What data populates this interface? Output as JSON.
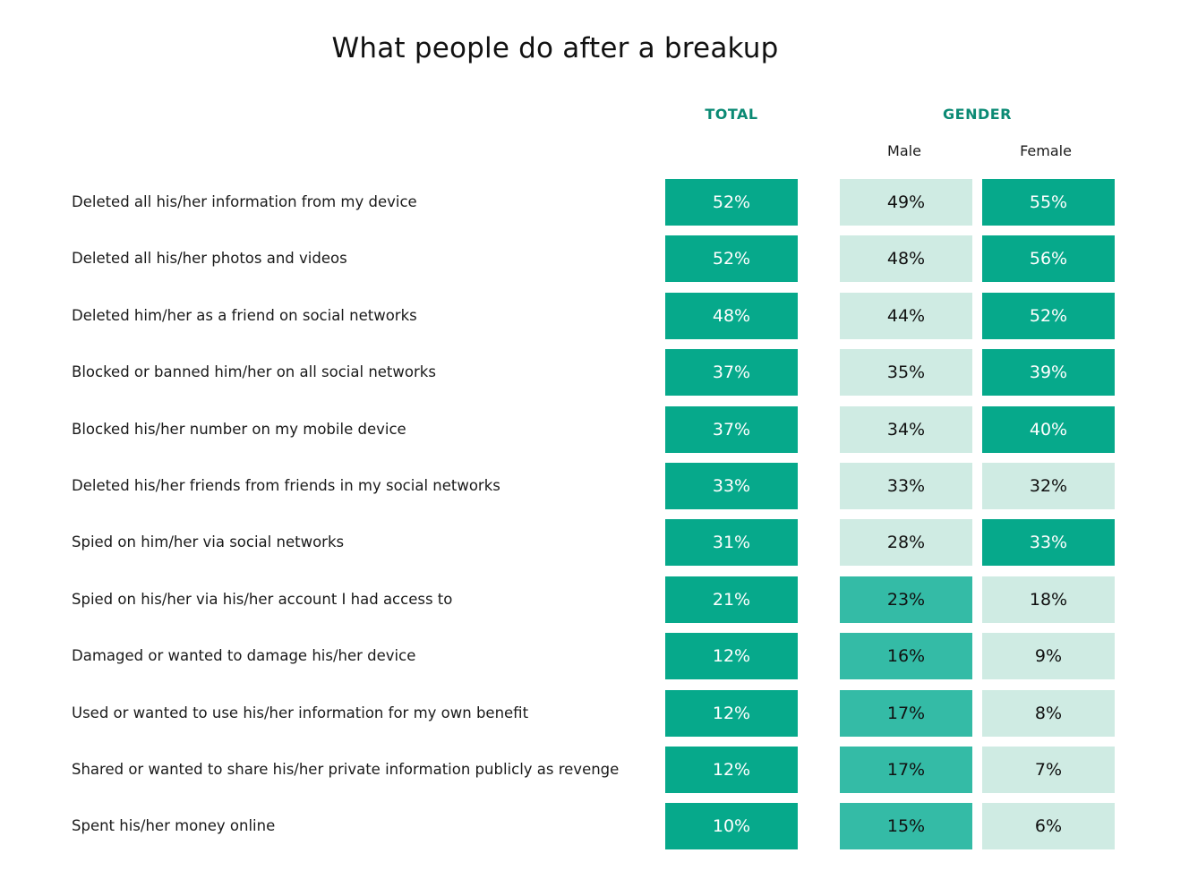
{
  "colors": {
    "header": "#0b8a74",
    "dark": "#06a98b",
    "medium": "#34bba6",
    "light": "#cfebe3",
    "dark_text": "#ffffff",
    "medium_text": "#111111",
    "light_text": "#111111"
  },
  "chart_data": {
    "type": "table",
    "title": "What people do after a breakup",
    "group_headers": [
      "TOTAL",
      "GENDER"
    ],
    "sub_headers": [
      "Male",
      "Female"
    ],
    "columns": [
      "Total",
      "Male",
      "Female"
    ],
    "rows": [
      {
        "label": "Deleted all his/her information from my device",
        "values": [
          "52%",
          "49%",
          "55%"
        ],
        "shades": [
          "dark",
          "light",
          "dark"
        ]
      },
      {
        "label": "Deleted all his/her photos and videos",
        "values": [
          "52%",
          "48%",
          "56%"
        ],
        "shades": [
          "dark",
          "light",
          "dark"
        ]
      },
      {
        "label": "Deleted him/her as a friend on social networks",
        "values": [
          "48%",
          "44%",
          "52%"
        ],
        "shades": [
          "dark",
          "light",
          "dark"
        ]
      },
      {
        "label": "Blocked or banned him/her on all social networks",
        "values": [
          "37%",
          "35%",
          "39%"
        ],
        "shades": [
          "dark",
          "light",
          "dark"
        ]
      },
      {
        "label": "Blocked his/her number on my mobile device",
        "values": [
          "37%",
          "34%",
          "40%"
        ],
        "shades": [
          "dark",
          "light",
          "dark"
        ]
      },
      {
        "label": "Deleted his/her friends from friends in my social networks",
        "values": [
          "33%",
          "33%",
          "32%"
        ],
        "shades": [
          "dark",
          "light",
          "light"
        ]
      },
      {
        "label": "Spied on him/her via social networks",
        "values": [
          "31%",
          "28%",
          "33%"
        ],
        "shades": [
          "dark",
          "light",
          "dark"
        ]
      },
      {
        "label": "Spied on his/her via his/her account I had access to",
        "values": [
          "21%",
          "23%",
          "18%"
        ],
        "shades": [
          "dark",
          "medium",
          "light"
        ]
      },
      {
        "label": "Damaged or wanted to damage his/her device",
        "values": [
          "12%",
          "16%",
          "9%"
        ],
        "shades": [
          "dark",
          "medium",
          "light"
        ]
      },
      {
        "label": "Used or wanted to use his/her information for my own benefit",
        "values": [
          "12%",
          "17%",
          "8%"
        ],
        "shades": [
          "dark",
          "medium",
          "light"
        ]
      },
      {
        "label": "Shared or wanted to share his/her private information publicly as revenge",
        "values": [
          "12%",
          "17%",
          "7%"
        ],
        "shades": [
          "dark",
          "medium",
          "light"
        ]
      },
      {
        "label": "Spent his/her money online",
        "values": [
          "10%",
          "15%",
          "6%"
        ],
        "shades": [
          "dark",
          "medium",
          "light"
        ]
      }
    ]
  }
}
